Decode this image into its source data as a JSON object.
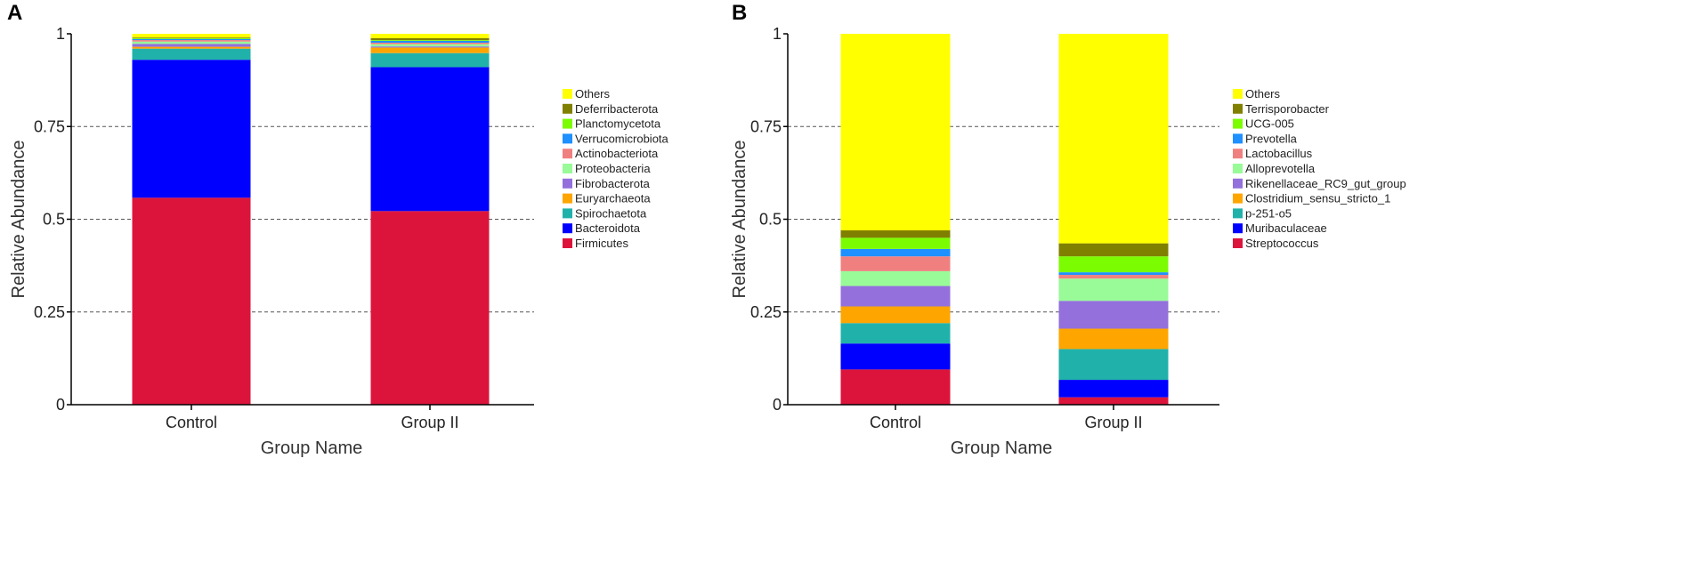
{
  "chart_data": [
    {
      "panel_label": "A",
      "type": "bar",
      "stacked": true,
      "xlabel": "Group Name",
      "ylabel": "Relative Abundance",
      "ylim": [
        0,
        1
      ],
      "yticks": [
        "0",
        "0.25",
        "0.5",
        "0.75",
        "1"
      ],
      "ytick_values": [
        0,
        0.25,
        0.5,
        0.75,
        1
      ],
      "grid": "horizontal-dashed",
      "categories": [
        "Control",
        "Group II"
      ],
      "series": [
        {
          "name": "Firmicutes",
          "color": "#dc143c",
          "values": [
            0.558,
            0.522
          ]
        },
        {
          "name": "Bacteroidota",
          "color": "#0000ff",
          "values": [
            0.372,
            0.388
          ]
        },
        {
          "name": "Spirochaetota",
          "color": "#20b2aa",
          "values": [
            0.03,
            0.038
          ]
        },
        {
          "name": "Euryarchaeota",
          "color": "#ffa500",
          "values": [
            0.005,
            0.015
          ]
        },
        {
          "name": "Fibrobacterota",
          "color": "#9370db",
          "values": [
            0.008,
            0.003
          ]
        },
        {
          "name": "Proteobacteria",
          "color": "#98fb98",
          "values": [
            0.006,
            0.006
          ]
        },
        {
          "name": "Actinobacteriota",
          "color": "#f08080",
          "values": [
            0.004,
            0.004
          ]
        },
        {
          "name": "Verrucomicrobiota",
          "color": "#1e90ff",
          "values": [
            0.003,
            0.005
          ]
        },
        {
          "name": "Planctomycetota",
          "color": "#7cfc00",
          "values": [
            0.002,
            0.002
          ]
        },
        {
          "name": "Deferribacterota",
          "color": "#808000",
          "values": [
            0.002,
            0.005
          ]
        },
        {
          "name": "Others",
          "color": "#ffff00",
          "values": [
            0.01,
            0.012
          ]
        }
      ]
    },
    {
      "panel_label": "B",
      "type": "bar",
      "stacked": true,
      "xlabel": "Group Name",
      "ylabel": "Relative Abundance",
      "ylim": [
        0,
        1
      ],
      "yticks": [
        "0",
        "0.25",
        "0.5",
        "0.75",
        "1"
      ],
      "ytick_values": [
        0,
        0.25,
        0.5,
        0.75,
        1
      ],
      "grid": "horizontal-dashed",
      "categories": [
        "Control",
        "Group II"
      ],
      "series": [
        {
          "name": "Streptococcus",
          "color": "#dc143c",
          "values": [
            0.095,
            0.02
          ]
        },
        {
          "name": "Muribaculaceae",
          "color": "#0000ff",
          "values": [
            0.07,
            0.047
          ]
        },
        {
          "name": "p-251-o5",
          "color": "#20b2aa",
          "values": [
            0.055,
            0.083
          ]
        },
        {
          "name": "Clostridium_sensu_stricto_1",
          "color": "#ffa500",
          "values": [
            0.045,
            0.055
          ]
        },
        {
          "name": "Rikenellaceae_RC9_gut_group",
          "color": "#9370db",
          "values": [
            0.055,
            0.075
          ]
        },
        {
          "name": "Alloprevotella",
          "color": "#98fb98",
          "values": [
            0.04,
            0.06
          ]
        },
        {
          "name": "Lactobacillus",
          "color": "#f08080",
          "values": [
            0.04,
            0.01
          ]
        },
        {
          "name": "Prevotella",
          "color": "#1e90ff",
          "values": [
            0.02,
            0.007
          ]
        },
        {
          "name": "UCG-005",
          "color": "#7cfc00",
          "values": [
            0.03,
            0.043
          ]
        },
        {
          "name": "Terrisporobacter",
          "color": "#808000",
          "values": [
            0.02,
            0.035
          ]
        },
        {
          "name": "Others",
          "color": "#ffff00",
          "values": [
            0.53,
            0.565
          ]
        }
      ]
    }
  ]
}
